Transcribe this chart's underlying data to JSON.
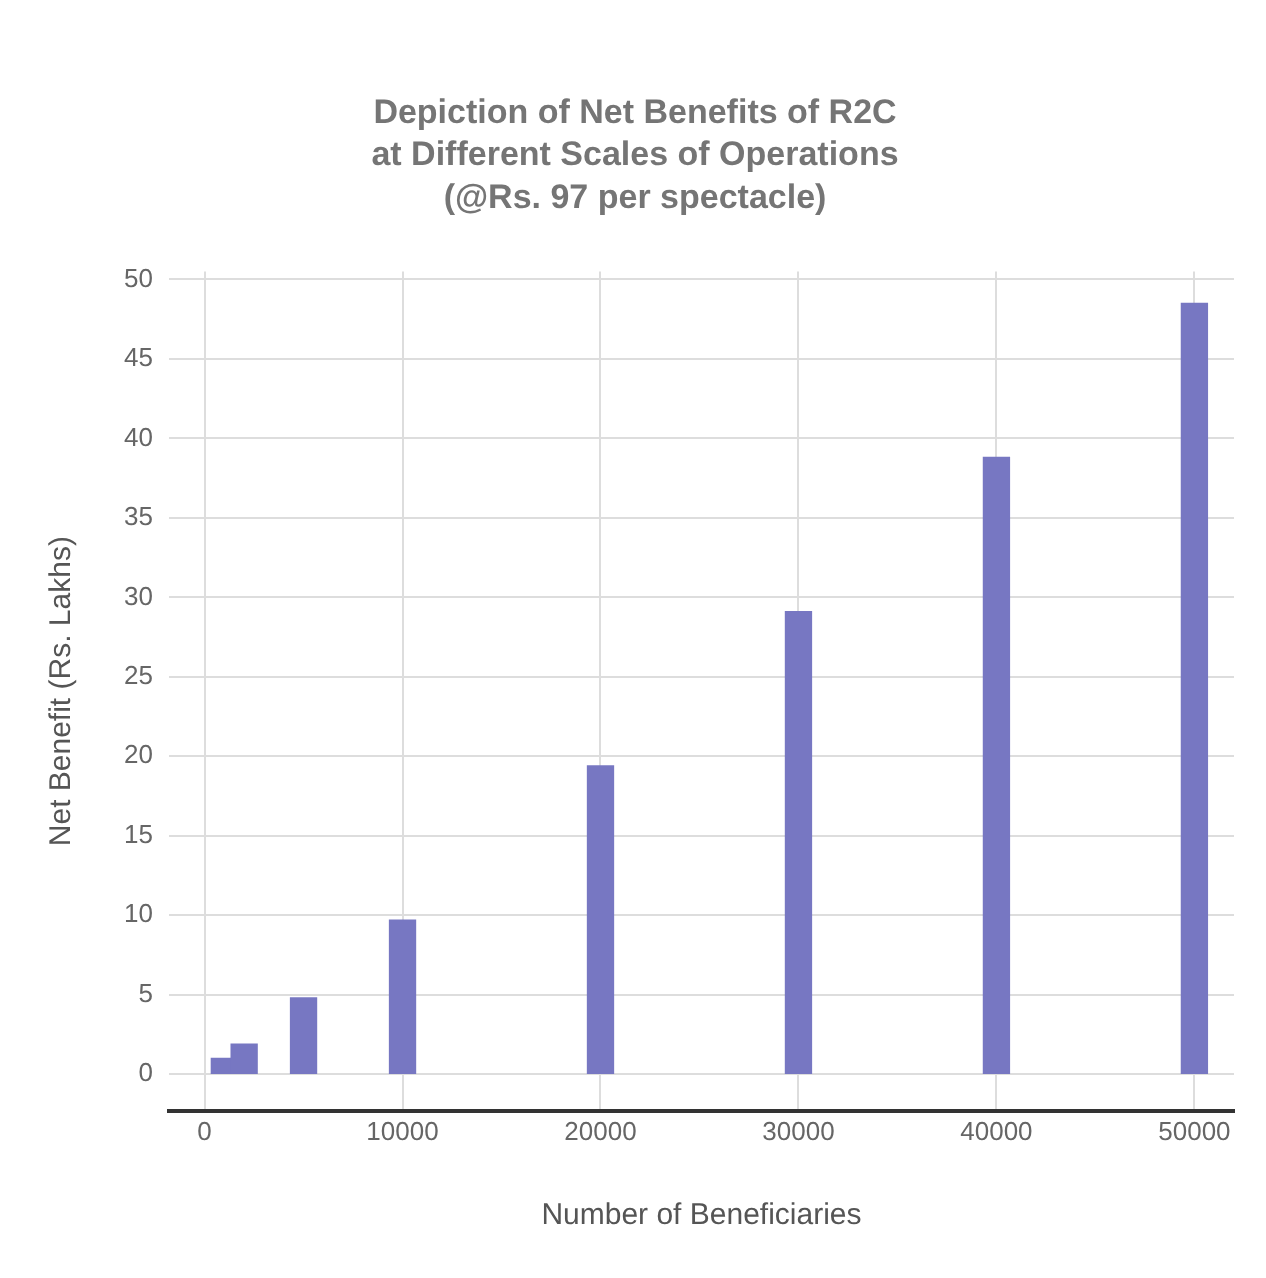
{
  "chart_data": {
    "type": "bar",
    "title": "Depiction of Net Benefits of R2C\nat Different Scales of Operations\n(@Rs. 97 per spectacle)",
    "xlabel": "Number of Beneficiaries",
    "ylabel": "Net Benefit (Rs. Lakhs)",
    "x": [
      1000,
      2000,
      5000,
      10000,
      20000,
      30000,
      40000,
      50000
    ],
    "values": [
      1.0,
      1.9,
      4.8,
      9.7,
      19.4,
      29.1,
      38.8,
      48.5
    ],
    "color": "#7777c2",
    "xlim": [
      -1800,
      52000
    ],
    "xticks": [
      0,
      10000,
      20000,
      30000,
      40000,
      50000
    ],
    "ylim": [
      -2.3,
      50.5
    ],
    "yticks": [
      0,
      5,
      10,
      15,
      20,
      25,
      30,
      35,
      40,
      45,
      50
    ],
    "grid": true
  }
}
